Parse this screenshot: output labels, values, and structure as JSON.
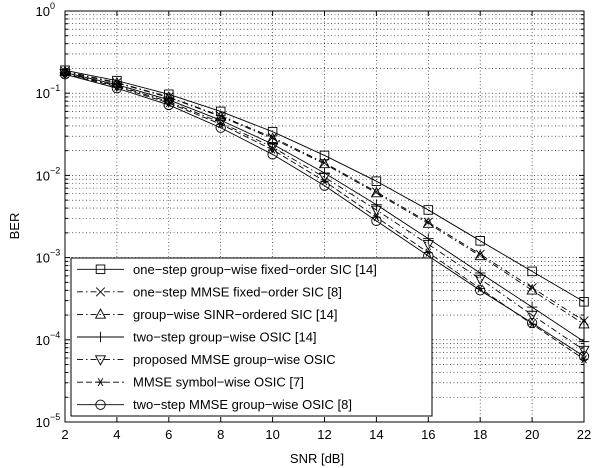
{
  "chart_data": {
    "type": "line",
    "xlabel": "SNR [dB]",
    "ylabel": "BER",
    "xlim": [
      2,
      22
    ],
    "ylim": [
      1e-05,
      1
    ],
    "yscale": "log",
    "grid": true,
    "legend_position": "bottom-left",
    "x": [
      2,
      4,
      6,
      8,
      10,
      12,
      14,
      16,
      18,
      20,
      22
    ],
    "xticks": [
      "2",
      "4",
      "6",
      "8",
      "10",
      "12",
      "14",
      "16",
      "18",
      "20",
      "22"
    ],
    "yticks": [
      {
        "base": "10",
        "exp": "0"
      },
      {
        "base": "10",
        "exp": "−1"
      },
      {
        "base": "10",
        "exp": "−2"
      },
      {
        "base": "10",
        "exp": "−3"
      },
      {
        "base": "10",
        "exp": "−4"
      },
      {
        "base": "10",
        "exp": "−5"
      }
    ],
    "series": [
      {
        "name": "one−step group−wise fixed−order SIC [14]",
        "marker": "square",
        "dash": "solid",
        "values": [
          0.19,
          0.142,
          0.097,
          0.06,
          0.034,
          0.0175,
          0.0085,
          0.0038,
          0.0016,
          0.00068,
          0.00029
        ]
      },
      {
        "name": "one−step MMSE fixed−order SIC [8]",
        "marker": "x",
        "dash": "dashdot",
        "values": [
          0.185,
          0.135,
          0.09,
          0.053,
          0.029,
          0.0142,
          0.0063,
          0.0027,
          0.0011,
          0.00043,
          0.00017
        ]
      },
      {
        "name": "group−wise SINR−ordered SIC [14]",
        "marker": "triangle",
        "dash": "dashdot",
        "values": [
          0.182,
          0.133,
          0.089,
          0.052,
          0.028,
          0.0138,
          0.0061,
          0.0026,
          0.00105,
          0.0004,
          0.000155
        ]
      },
      {
        "name": "two−step group−wise OSIC [14]",
        "marker": "plus",
        "dash": "solid",
        "values": [
          0.178,
          0.127,
          0.083,
          0.047,
          0.024,
          0.0107,
          0.0044,
          0.0017,
          0.00065,
          0.00025,
          9.5e-05
        ]
      },
      {
        "name": "proposed MMSE group−wise OSIC",
        "marker": "triangle-down",
        "dash": "dashdot",
        "values": [
          0.175,
          0.123,
          0.079,
          0.044,
          0.022,
          0.0095,
          0.0038,
          0.00145,
          0.00055,
          0.0002,
          7.5e-05
        ]
      },
      {
        "name": "MMSE symbol−wise OSIC [7]",
        "marker": "asterisk",
        "dash": "dashed",
        "values": [
          0.172,
          0.12,
          0.076,
          0.042,
          0.0205,
          0.0085,
          0.0031,
          0.00115,
          0.00042,
          0.000155,
          5.8e-05
        ]
      },
      {
        "name": "two−step MMSE group−wise OSIC [8]",
        "marker": "circle",
        "dash": "solid",
        "values": [
          0.17,
          0.115,
          0.072,
          0.038,
          0.018,
          0.0075,
          0.0028,
          0.00105,
          0.0004,
          0.00016,
          6.3e-05
        ]
      }
    ]
  }
}
